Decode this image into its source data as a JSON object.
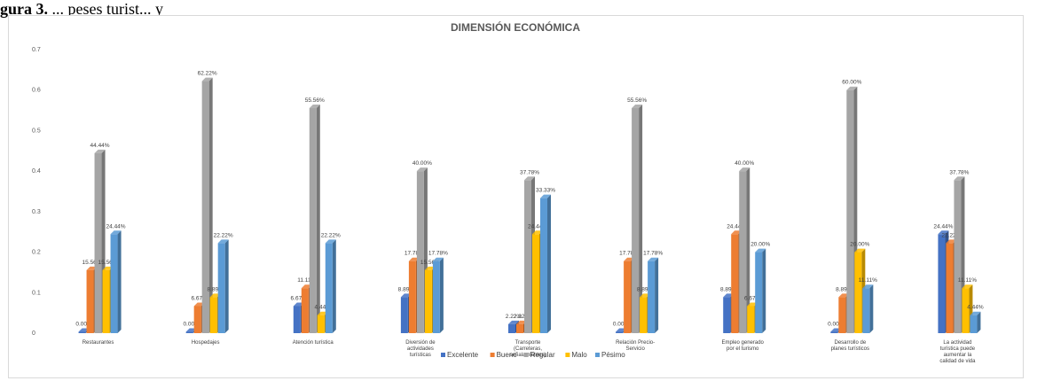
{
  "caption": {
    "prefix": "gura 3.",
    "rest": "  ... peses turist... y"
  },
  "chart_data": {
    "type": "bar",
    "title": "DIMENSIÓN ECONÓMICA",
    "xlabel": "",
    "ylabel": "",
    "ylim": [
      0,
      0.7
    ],
    "yticks": [
      "0",
      "0.1",
      "0.2",
      "0.3",
      "0.4",
      "0.5",
      "0.6",
      "0.7"
    ],
    "grid": false,
    "legend_position": "bottom",
    "categories": [
      [
        "Restaurantes"
      ],
      [
        "Hospedajes"
      ],
      [
        "Atención turística"
      ],
      [
        "Diversión de",
        "actividades",
        "turísticas"
      ],
      [
        "Transporte",
        "(Carreteras,",
        "señalamientos)"
      ],
      [
        "Relación Precio-",
        "Servicio"
      ],
      [
        "Empleo generado",
        "por el turismo"
      ],
      [
        "Desarrollo de",
        "planes turísticos"
      ],
      [
        "La actividad",
        "turística puede",
        "aumentar la",
        "calidad de vida"
      ]
    ],
    "series": [
      {
        "name": "Excelente",
        "color": "#4472c4",
        "values": [
          0.0,
          0.0,
          0.0667,
          0.0889,
          0.0222,
          0.0,
          0.0889,
          0.0,
          0.2444
        ],
        "labels": [
          "0.00%",
          "0.00%",
          "6.67%",
          "8.89%",
          "2.22%",
          "0.00%",
          "8.89%",
          "0.00%",
          "24.44%"
        ]
      },
      {
        "name": "Bueno",
        "color": "#ed7d31",
        "values": [
          0.1556,
          0.0667,
          0.1111,
          0.1778,
          0.0222,
          0.1778,
          0.2444,
          0.0889,
          0.2222
        ],
        "labels": [
          "15.56%",
          "6.67%",
          "11.11%",
          "17.78%",
          "2.22%",
          "17.78%",
          "24.44%",
          "8.89%",
          "22.22%"
        ]
      },
      {
        "name": "Regular",
        "color": "#a5a5a5",
        "values": [
          0.4444,
          0.6222,
          0.5556,
          0.4,
          0.3778,
          0.5556,
          0.4,
          0.6,
          0.3778
        ],
        "labels": [
          "44.44%",
          "62.22%",
          "55.56%",
          "40.00%",
          "37.78%",
          "55.56%",
          "40.00%",
          "60.00%",
          "37.78%"
        ]
      },
      {
        "name": "Malo",
        "color": "#ffc000",
        "values": [
          0.1556,
          0.0889,
          0.0444,
          0.1556,
          0.2444,
          0.0889,
          0.0667,
          0.2,
          0.1111
        ],
        "labels": [
          "15.56%",
          "8.89%",
          "4.44%",
          "15.56%",
          "24.44%",
          "8.89%",
          "6.67%",
          "20.00%",
          "11.11%"
        ]
      },
      {
        "name": "Pésimo",
        "color": "#5b9bd5",
        "values": [
          0.2444,
          0.2222,
          0.2222,
          0.1778,
          0.3333,
          0.1778,
          0.2,
          0.1111,
          0.0444
        ],
        "labels": [
          "24.44%",
          "22.22%",
          "22.22%",
          "17.78%",
          "33.33%",
          "17.78%",
          "20.00%",
          "11.11%",
          "4.44%"
        ]
      }
    ]
  }
}
